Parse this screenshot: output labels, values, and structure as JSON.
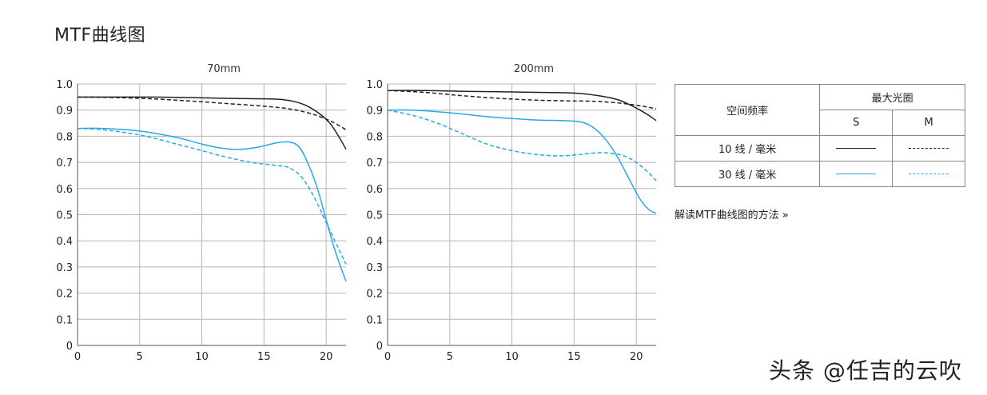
{
  "page": {
    "title": "MTF曲线图"
  },
  "legend": {
    "freq_header": "空间频率",
    "aperture_header": "最大光圈",
    "col_s": "S",
    "col_m": "M",
    "rows": [
      {
        "label": "10 线 / 毫米",
        "color": "#222222"
      },
      {
        "label": "30 线 / 毫米",
        "color": "#29a8e6"
      }
    ]
  },
  "link": {
    "label": "解读MTF曲线图的方法 »"
  },
  "watermark": {
    "text": "头条 @任吉的云吹"
  },
  "chart_data": [
    {
      "type": "line",
      "title": "70mm",
      "xlim": [
        0,
        21.6
      ],
      "ylim": [
        0,
        1.0
      ],
      "xticks": [
        0,
        5,
        10,
        15,
        20
      ],
      "xtick_labels": [
        "0",
        "5",
        "10",
        "15",
        "20"
      ],
      "yticks": [
        0,
        0.1,
        0.2,
        0.3,
        0.4,
        0.5,
        0.6,
        0.7,
        0.8,
        0.9,
        1.0
      ],
      "ytick_labels": [
        "0",
        "0.1",
        "0.2",
        "0.3",
        "0.4",
        "0.5",
        "0.6",
        "0.7",
        "0.8",
        "0.9",
        "1.0"
      ],
      "grid": true,
      "series": [
        {
          "color": "#222222",
          "dash": false,
          "x": [
            0,
            3,
            6,
            9,
            12,
            15,
            16.5,
            17.5,
            18.5,
            19.5,
            20.3,
            21,
            21.6
          ],
          "y": [
            0.95,
            0.95,
            0.95,
            0.948,
            0.945,
            0.943,
            0.94,
            0.932,
            0.915,
            0.885,
            0.85,
            0.8,
            0.75
          ]
        },
        {
          "color": "#222222",
          "dash": true,
          "x": [
            0,
            3,
            6,
            9,
            12,
            15,
            17,
            18.5,
            19.5,
            20.5,
            21.6
          ],
          "y": [
            0.95,
            0.948,
            0.943,
            0.935,
            0.925,
            0.915,
            0.905,
            0.89,
            0.875,
            0.855,
            0.825
          ]
        },
        {
          "color": "#29a8e6",
          "dash": false,
          "x": [
            0,
            2,
            5,
            8,
            10,
            11.5,
            13,
            14.5,
            16,
            17,
            17.8,
            18.5,
            19.3,
            20,
            20.8,
            21.6
          ],
          "y": [
            0.83,
            0.83,
            0.82,
            0.795,
            0.77,
            0.755,
            0.75,
            0.758,
            0.775,
            0.778,
            0.76,
            0.7,
            0.6,
            0.48,
            0.35,
            0.245
          ]
        },
        {
          "color": "#29a8e6",
          "dash": true,
          "x": [
            0,
            2,
            5,
            8,
            10,
            12,
            14,
            16,
            17,
            18,
            19,
            20,
            21,
            21.6
          ],
          "y": [
            0.83,
            0.825,
            0.805,
            0.77,
            0.745,
            0.72,
            0.7,
            0.688,
            0.68,
            0.645,
            0.57,
            0.47,
            0.37,
            0.31
          ]
        }
      ]
    },
    {
      "type": "line",
      "title": "200mm",
      "xlim": [
        0,
        21.6
      ],
      "ylim": [
        0,
        1.0
      ],
      "xticks": [
        0,
        5,
        10,
        15,
        20
      ],
      "xtick_labels": [
        "0",
        "5",
        "10",
        "15",
        "20"
      ],
      "yticks": [
        0,
        0.1,
        0.2,
        0.3,
        0.4,
        0.5,
        0.6,
        0.7,
        0.8,
        0.9,
        1.0
      ],
      "ytick_labels": [
        "0",
        "0.1",
        "0.2",
        "0.3",
        "0.4",
        "0.5",
        "0.6",
        "0.7",
        "0.8",
        "0.9",
        "1.0"
      ],
      "grid": true,
      "series": [
        {
          "color": "#222222",
          "dash": false,
          "x": [
            0,
            3,
            6,
            9,
            12,
            15,
            17,
            18.5,
            19.5,
            20.3,
            21,
            21.6
          ],
          "y": [
            0.975,
            0.975,
            0.972,
            0.97,
            0.968,
            0.965,
            0.955,
            0.94,
            0.92,
            0.9,
            0.88,
            0.86
          ]
        },
        {
          "color": "#222222",
          "dash": true,
          "x": [
            0,
            3,
            6,
            9,
            12,
            15,
            17,
            19,
            20.5,
            21.6
          ],
          "y": [
            0.975,
            0.968,
            0.955,
            0.945,
            0.938,
            0.935,
            0.933,
            0.925,
            0.915,
            0.905
          ]
        },
        {
          "color": "#29a8e6",
          "dash": false,
          "x": [
            0,
            2,
            5,
            8,
            10,
            12,
            14,
            15.5,
            16.5,
            17.5,
            18.5,
            19.5,
            20.3,
            21,
            21.6
          ],
          "y": [
            0.9,
            0.9,
            0.89,
            0.875,
            0.868,
            0.862,
            0.86,
            0.855,
            0.835,
            0.79,
            0.72,
            0.63,
            0.56,
            0.52,
            0.505
          ]
        },
        {
          "color": "#29a8e6",
          "dash": true,
          "x": [
            0,
            2,
            4,
            6,
            8,
            10,
            12,
            14,
            16,
            17,
            18,
            19,
            20,
            21,
            21.6
          ],
          "y": [
            0.9,
            0.88,
            0.85,
            0.81,
            0.77,
            0.745,
            0.73,
            0.725,
            0.733,
            0.737,
            0.735,
            0.725,
            0.7,
            0.66,
            0.63
          ]
        }
      ]
    }
  ]
}
